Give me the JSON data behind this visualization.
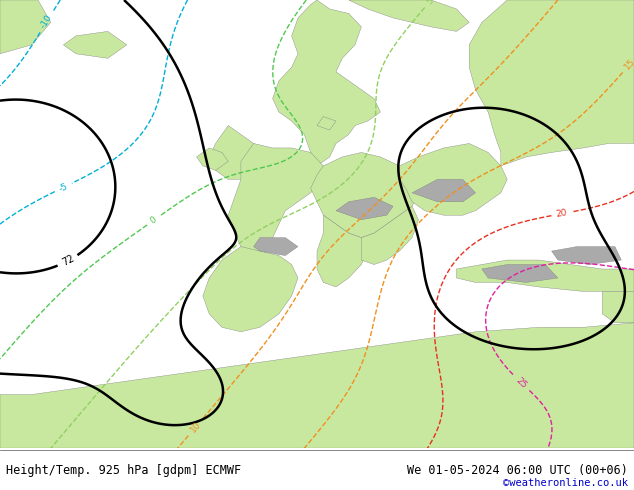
{
  "title_left": "Height/Temp. 925 hPa [gdpm] ECMWF",
  "title_right": "We 01-05-2024 06:00 UTC (00+06)",
  "credit": "©weatheronline.co.uk",
  "fig_width": 6.34,
  "fig_height": 4.9,
  "dpi": 100,
  "land_green": "#c8e8a0",
  "land_gray": "#aaaaaa",
  "sea_color": "#e0e0e0",
  "height_color": "#000000",
  "temp_cyan_color": "#00b0d8",
  "temp_green_color": "#50c850",
  "temp_orange_color": "#f09020",
  "temp_red_color": "#e83020",
  "temp_magenta_color": "#e020a0",
  "title_fontsize": 8.5,
  "credit_fontsize": 7.5,
  "credit_color": "#0000cc"
}
